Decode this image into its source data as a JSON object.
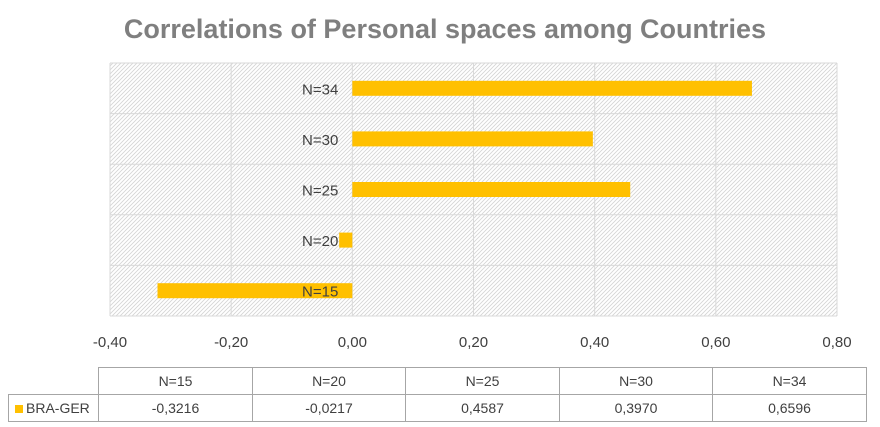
{
  "chart_data": {
    "type": "bar",
    "orientation": "horizontal",
    "title": "Correlations of Personal spaces among Countries",
    "categories": [
      "N=15",
      "N=20",
      "N=25",
      "N=30",
      "N=34"
    ],
    "series": [
      {
        "name": "BRA-GER",
        "values": [
          -0.3216,
          -0.0217,
          0.4587,
          0.397,
          0.6596
        ],
        "value_labels": [
          "-0,3216",
          "-0,0217",
          "0,4587",
          "0,3970",
          "0,6596"
        ]
      }
    ],
    "xlim": [
      -0.4,
      0.8
    ],
    "x_ticks": [
      -0.4,
      -0.2,
      0.0,
      0.2,
      0.4,
      0.6,
      0.8
    ],
    "x_tick_labels": [
      "-0,40",
      "-0,20",
      "0,00",
      "0,20",
      "0,40",
      "0,60",
      "0,80"
    ],
    "grid": true,
    "plot_background": "hatched",
    "data_table": true,
    "colors": {
      "bar": "#FFC000",
      "title": "#7f7f7f",
      "grid": "#d9d9d9"
    }
  }
}
